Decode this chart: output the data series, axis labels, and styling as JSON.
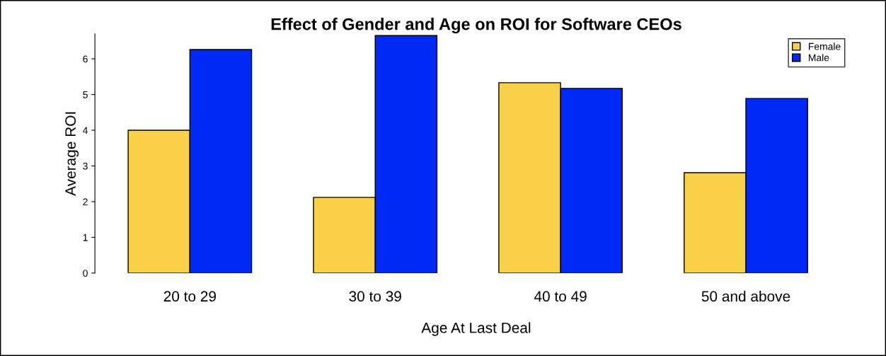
{
  "chart_data": {
    "type": "bar",
    "title": "Effect of Gender and Age on ROI for Software CEOs",
    "xlabel": "Age At Last Deal",
    "ylabel": "Average ROI",
    "categories": [
      "20 to 29",
      "30 to 39",
      "40 to 49",
      "50 and above"
    ],
    "series": [
      {
        "name": "Female",
        "color": "#f9d04a",
        "values": [
          4.0,
          2.12,
          5.33,
          2.81
        ]
      },
      {
        "name": "Male",
        "color": "#0029f5",
        "values": [
          6.26,
          6.65,
          5.17,
          4.89
        ]
      }
    ],
    "ylim": [
      0,
      6.7
    ],
    "yticks": [
      0,
      1,
      2,
      3,
      4,
      5,
      6
    ],
    "grid": false,
    "legend": "top right"
  }
}
